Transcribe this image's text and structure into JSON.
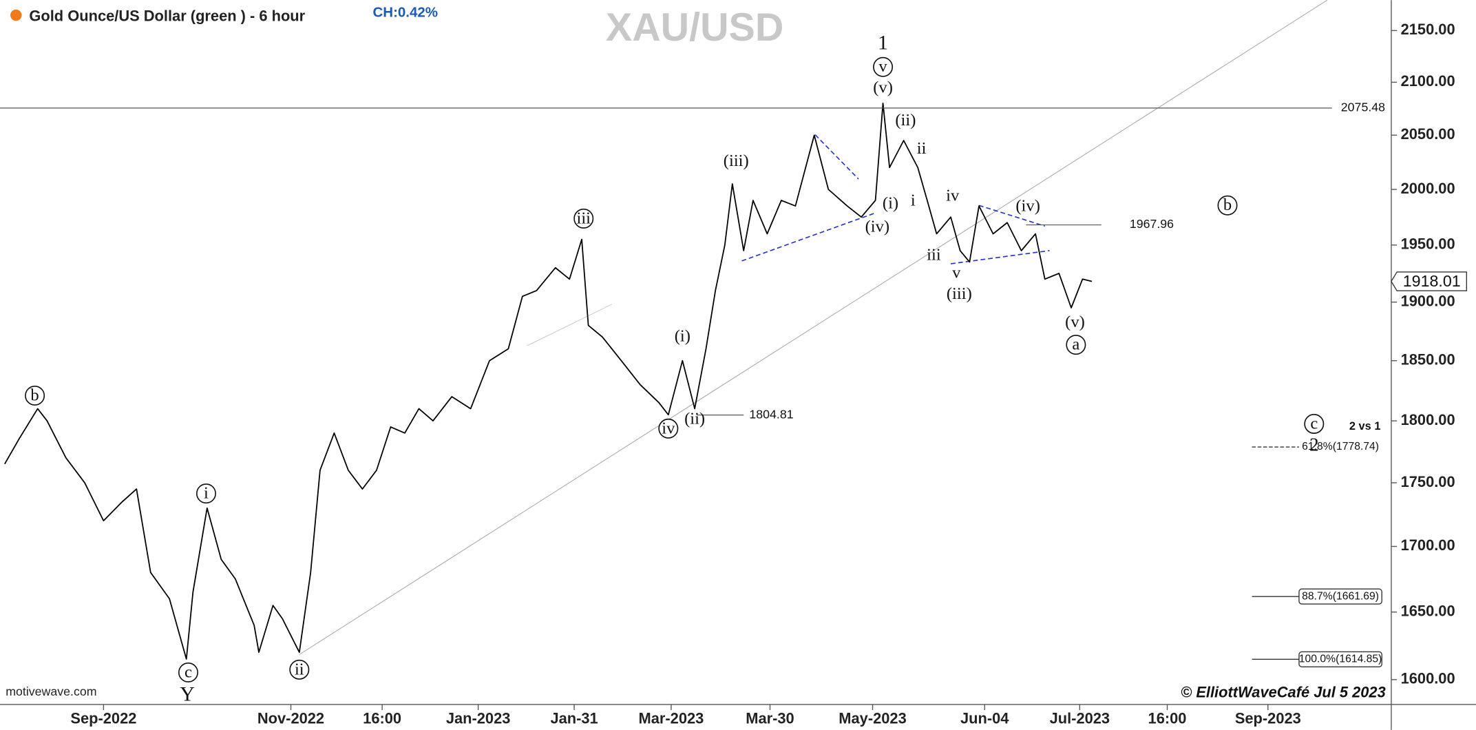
{
  "chart_data": {
    "type": "line",
    "title": "Gold Ounce/US Dollar (green ) - 6 hour",
    "change": "CH:0.42%",
    "symbol": "XAU/USD",
    "source": "motivewave.com",
    "credit": "© ElliottWaveCafé Jul 5 2023",
    "log_scale": true,
    "color": "#000000",
    "xlim": [
      0,
      1475
    ],
    "ylim": [
      1582,
      2180
    ],
    "xticks": [
      {
        "value": 110,
        "label": "Sep-2022"
      },
      {
        "value": 309,
        "label": "Nov-2022"
      },
      {
        "value": 406,
        "label": "16:00"
      },
      {
        "value": 508,
        "label": "Jan-2023"
      },
      {
        "value": 610,
        "label": "Jan-31"
      },
      {
        "value": 713,
        "label": "Mar-2023"
      },
      {
        "value": 818,
        "label": "Mar-30"
      },
      {
        "value": 927,
        "label": "May-2023"
      },
      {
        "value": 1046,
        "label": "Jun-04"
      },
      {
        "value": 1147,
        "label": "Jul-2023"
      },
      {
        "value": 1240,
        "label": "16:00"
      },
      {
        "value": 1347,
        "label": "Sep-2023"
      }
    ],
    "yticks": [
      {
        "value": 1600,
        "label": "1600.00"
      },
      {
        "value": 1650,
        "label": "1650.00"
      },
      {
        "value": 1700,
        "label": "1700.00"
      },
      {
        "value": 1750,
        "label": "1750.00"
      },
      {
        "value": 1800,
        "label": "1800.00"
      },
      {
        "value": 1850,
        "label": "1850.00"
      },
      {
        "value": 1900,
        "label": "1900.00"
      },
      {
        "value": 1950,
        "label": "1950.00"
      },
      {
        "value": 2000,
        "label": "2000.00"
      },
      {
        "value": 2050,
        "label": "2050.00"
      },
      {
        "value": 2100,
        "label": "2100.00"
      },
      {
        "value": 2150,
        "label": "2150.00"
      }
    ],
    "x": [
      5,
      20,
      40,
      50,
      70,
      90,
      110,
      130,
      145,
      160,
      180,
      198,
      205,
      220,
      235,
      250,
      270,
      275,
      290,
      300,
      318,
      330,
      340,
      355,
      370,
      385,
      400,
      415,
      430,
      445,
      460,
      480,
      500,
      520,
      540,
      555,
      570,
      590,
      605,
      618,
      625,
      640,
      660,
      680,
      700,
      710,
      725,
      738,
      750,
      760,
      770,
      778,
      790,
      800,
      815,
      830,
      845,
      865,
      880,
      900,
      915,
      930,
      938,
      945,
      960,
      975,
      985,
      995,
      1010,
      1020,
      1030,
      1040,
      1055,
      1070,
      1085,
      1100,
      1110,
      1125,
      1138,
      1150,
      1160
    ],
    "values": [
      1765,
      1785,
      1810,
      1800,
      1770,
      1750,
      1720,
      1735,
      1745,
      1680,
      1660,
      1615,
      1665,
      1730,
      1690,
      1675,
      1640,
      1620,
      1655,
      1645,
      1620,
      1680,
      1760,
      1790,
      1760,
      1745,
      1760,
      1795,
      1790,
      1810,
      1800,
      1820,
      1810,
      1850,
      1860,
      1905,
      1910,
      1930,
      1920,
      1955,
      1880,
      1870,
      1850,
      1830,
      1815,
      1805,
      1850,
      1810,
      1860,
      1910,
      1950,
      2005,
      1945,
      1990,
      1960,
      1990,
      1985,
      2050,
      2000,
      1985,
      1975,
      1990,
      2080,
      2020,
      2045,
      2020,
      1990,
      1960,
      1975,
      1945,
      1935,
      1985,
      1960,
      1970,
      1945,
      1960,
      1920,
      1925,
      1895,
      1920,
      1918
    ],
    "last_price": 1918.01,
    "levels": [
      2075.48,
      1967.96,
      1804.81
    ],
    "fib_levels": [
      {
        "value": 1778.74,
        "label": "61.8%(1778.74)"
      },
      {
        "value": 1661.69,
        "label": "88.7%(1661.69)"
      },
      {
        "value": 1614.85,
        "label": "100.0%(1614.85)"
      }
    ],
    "annotations": [
      {
        "text": "b",
        "circled": true
      },
      {
        "text": "i",
        "circled": true
      },
      {
        "text": "c",
        "circled": true
      },
      {
        "text": "Y"
      },
      {
        "text": "ii",
        "circled": true
      },
      {
        "text": "iii",
        "circled": true
      },
      {
        "text": "(i)"
      },
      {
        "text": "iv",
        "circled": true
      },
      {
        "text": "(ii)"
      },
      {
        "text": "(iii)"
      },
      {
        "text": "(iv)"
      },
      {
        "text": "(i)"
      },
      {
        "text": "1"
      },
      {
        "text": "v",
        "circled": true
      },
      {
        "text": "(v)"
      },
      {
        "text": "(ii)"
      },
      {
        "text": "ii"
      },
      {
        "text": "i"
      },
      {
        "text": "iv"
      },
      {
        "text": "iii"
      },
      {
        "text": "v"
      },
      {
        "text": "(iii)"
      },
      {
        "text": "(iv)"
      },
      {
        "text": "(v)"
      },
      {
        "text": "a",
        "circled": true
      },
      {
        "text": "b",
        "circled": true
      },
      {
        "text": "c",
        "circled": true
      },
      {
        "text": "2"
      },
      {
        "text": "2 vs 1"
      }
    ]
  }
}
